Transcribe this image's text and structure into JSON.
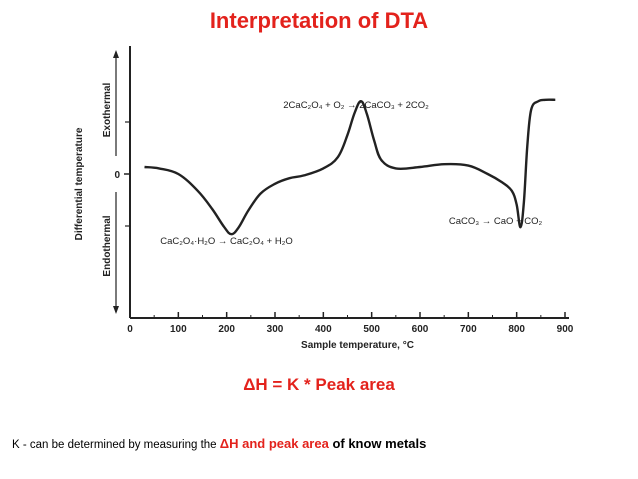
{
  "slide": {
    "title": "Interpretation of DTA",
    "formula": "ΔH = K * Peak area",
    "note": {
      "prefix": "K - can be determined by measuring the ",
      "highlight": "ΔH and peak area",
      "suffix": " of know metals"
    },
    "colors": {
      "accent": "#e3221c",
      "text": "#000000"
    }
  },
  "chart_data": {
    "type": "line",
    "xlabel": "Sample temperature, °C",
    "ylabel": "Differential temperature",
    "xlim": [
      0,
      900
    ],
    "xticks": [
      "0",
      "100",
      "200",
      "300",
      "400",
      "500",
      "600",
      "700",
      "800",
      "900"
    ],
    "y_zero_label": "0",
    "y_regions": {
      "upper": "Exothermal",
      "lower": "Endothermal"
    },
    "grid": false,
    "series": [
      {
        "x": [
          30,
          60,
          100,
          140,
          170,
          195,
          210,
          225,
          245,
          270,
          300,
          330,
          360,
          400,
          430,
          450,
          465,
          478,
          490,
          505,
          520,
          550,
          600,
          650,
          700,
          740,
          770,
          790,
          800,
          808,
          815,
          822,
          830,
          845,
          860,
          880
        ],
        "y": [
          0.5,
          0.4,
          0.0,
          -1.2,
          -2.5,
          -3.8,
          -4.3,
          -3.8,
          -2.6,
          -1.4,
          -0.7,
          -0.3,
          -0.1,
          0.4,
          1.2,
          2.8,
          4.4,
          5.2,
          4.3,
          2.4,
          1.0,
          0.4,
          0.5,
          0.7,
          0.6,
          0.0,
          -0.6,
          -1.2,
          -2.2,
          -3.8,
          -2.0,
          2.0,
          4.6,
          5.2,
          5.3,
          5.3
        ]
      }
    ],
    "annotations": [
      {
        "text": "2CaC₂O₄ + O₂ → 2CaCO₃ + 2CO₂",
        "x": 478
      },
      {
        "text": "CaC₂O₄·H₂O → CaC₂O₄ + H₂O",
        "x": 210
      },
      {
        "text": "CaCO₃ → CaO + CO₂",
        "x": 808
      }
    ]
  }
}
